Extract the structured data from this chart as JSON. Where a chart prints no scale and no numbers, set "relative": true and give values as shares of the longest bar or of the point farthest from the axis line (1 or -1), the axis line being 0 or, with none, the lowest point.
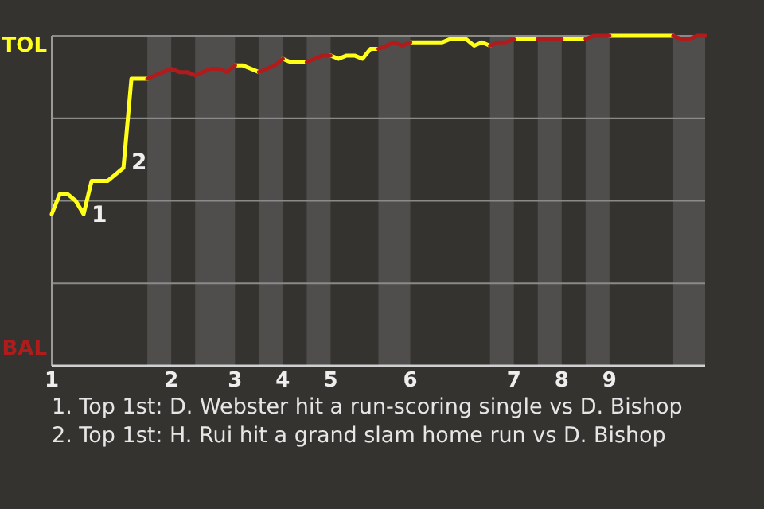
{
  "chart_data": {
    "type": "line",
    "relative": true,
    "categories": [
      "1",
      null,
      null,
      null,
      null,
      null,
      null,
      null,
      null,
      null,
      null,
      null,
      null,
      null,
      null,
      "2",
      null,
      null,
      null,
      null,
      null,
      null,
      null,
      "3",
      null,
      null,
      null,
      null,
      null,
      "4",
      null,
      null,
      null,
      null,
      null,
      "5",
      null,
      null,
      null,
      null,
      null,
      null,
      null,
      null,
      null,
      "6",
      null,
      null,
      null,
      null,
      null,
      null,
      null,
      null,
      null,
      null,
      null,
      null,
      "7",
      null,
      null,
      null,
      null,
      null,
      "8",
      null,
      null,
      null,
      null,
      null,
      "9",
      null,
      null,
      null,
      null,
      null,
      null,
      null,
      null,
      null,
      null,
      null,
      null
    ],
    "grid": "y",
    "legend": false,
    "series": [
      {
        "color": "#ffff1a",
        "values": [
          0.46,
          0.52,
          0.52,
          0.5,
          0.46,
          0.56,
          0.56,
          0.56,
          0.58,
          0.6,
          0.87,
          0.87,
          0.87,
          null,
          null,
          null,
          null,
          null,
          null,
          null,
          null,
          null,
          null,
          0.91,
          0.91,
          0.9,
          0.89,
          null,
          null,
          0.93,
          0.92,
          0.92,
          0.92,
          null,
          null,
          0.94,
          0.93,
          0.94,
          0.94,
          0.93,
          0.96,
          0.96,
          null,
          null,
          null,
          0.98,
          0.98,
          0.98,
          0.98,
          0.98,
          0.99,
          0.99,
          0.99,
          0.97,
          0.98,
          0.97,
          null,
          null,
          0.99,
          0.99,
          0.99,
          0.99,
          null,
          null,
          0.99,
          0.99,
          0.99,
          0.99,
          null,
          null,
          1,
          1,
          1,
          1,
          1,
          1,
          1,
          1,
          1,
          null,
          null,
          null,
          null
        ]
      },
      {
        "color": "#b01c1c",
        "values": [
          null,
          null,
          null,
          null,
          null,
          null,
          null,
          null,
          null,
          null,
          null,
          null,
          0.87,
          0.88,
          0.89,
          0.9,
          0.89,
          0.89,
          0.88,
          0.89,
          0.9,
          0.9,
          0.89,
          0.91,
          null,
          null,
          0.89,
          0.9,
          0.91,
          0.93,
          null,
          null,
          0.92,
          0.93,
          0.94,
          0.94,
          null,
          null,
          null,
          null,
          null,
          0.96,
          0.97,
          0.98,
          0.97,
          0.98,
          null,
          null,
          null,
          null,
          null,
          null,
          null,
          null,
          null,
          0.97,
          0.98,
          0.98,
          0.99,
          null,
          null,
          0.99,
          0.99,
          0.99,
          0.99,
          null,
          null,
          0.99,
          1,
          1,
          1,
          null,
          null,
          null,
          null,
          null,
          null,
          null,
          1,
          0.99,
          0.99,
          1,
          1
        ]
      }
    ],
    "annotations": [
      "TOL",
      "BAL",
      "1",
      "2",
      "1. Top 1st: D. Webster hit a run-scoring single vs D. Bishop",
      "2. Top 1st: H. Rui hit a grand slam home run vs D. Bishop"
    ]
  }
}
